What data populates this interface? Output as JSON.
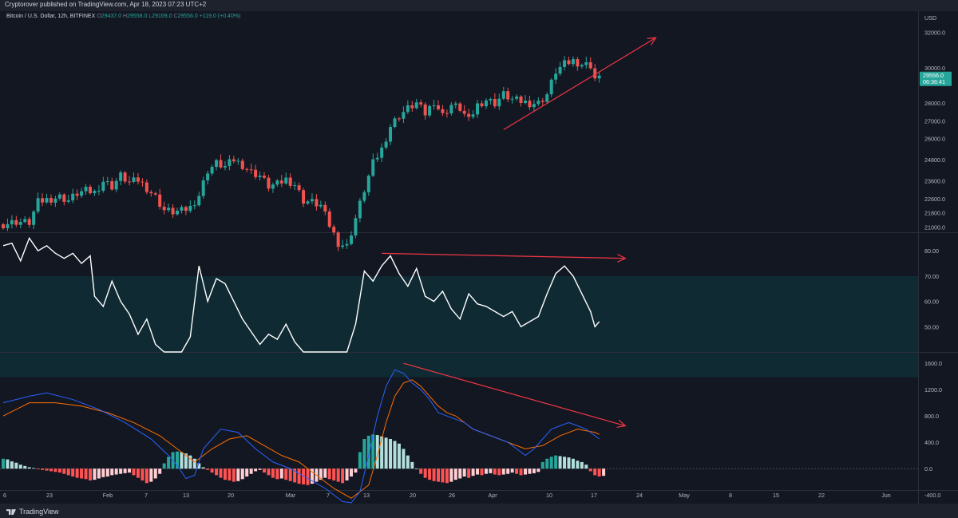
{
  "header": {
    "published": "Cryptorover published on TradingView.com, Apr 18, 2023 07:23 UTC+2",
    "symbol": "Bitcoin / U.S. Dollar, 12h, BITFINEX",
    "o_label": "O",
    "o_value": "29437.0",
    "h_label": "H",
    "h_value": "29558.0",
    "l_label": "L",
    "l_value": "29169.0",
    "c_label": "C",
    "c_value": "29556.0",
    "change": "+119.0 (+0.40%)"
  },
  "footer": {
    "brand": "TradingView"
  },
  "colors": {
    "background": "#131722",
    "up": "#26a69a",
    "down": "#ef5350",
    "annotation": "#f23645",
    "rsi_band": "#0f2a33",
    "macd_line": "#2962ff",
    "signal_line": "#ff6d00"
  },
  "chart_data": {
    "type": "candlestick",
    "currency_label": "USD",
    "x_ticks": [
      "6",
      "23",
      "Feb",
      "7",
      "13",
      "20",
      "Mar",
      "7",
      "13",
      "20",
      "26",
      "Apr",
      "10",
      "17",
      "24",
      "May",
      "8",
      "15",
      "22",
      "Jun"
    ],
    "price": {
      "y_ticks": [
        21000,
        21800,
        22600,
        23600,
        24800,
        26000,
        27000,
        28000,
        30000,
        32000
      ],
      "y_tick_labels": [
        "21000.0",
        "21800.0",
        "22600.0",
        "23600.0",
        "24800.0",
        "26000.0",
        "27000.0",
        "28000.0",
        "30000.0",
        "32000.0"
      ],
      "last_price_label": "29556.0",
      "countdown_label": "06:36:41",
      "close_points": [
        [
          0,
          21150
        ],
        [
          3,
          21300
        ],
        [
          6,
          21250
        ],
        [
          8,
          22400
        ],
        [
          10,
          22550
        ],
        [
          13,
          22700
        ],
        [
          15,
          22500
        ],
        [
          17,
          22900
        ],
        [
          19,
          23050
        ],
        [
          21,
          22950
        ],
        [
          23,
          23600
        ],
        [
          25,
          23300
        ],
        [
          27,
          23900
        ],
        [
          29,
          23500
        ],
        [
          31,
          23650
        ],
        [
          33,
          23200
        ],
        [
          35,
          22700
        ],
        [
          37,
          21950
        ],
        [
          39,
          21850
        ],
        [
          41,
          21900
        ],
        [
          43,
          22100
        ],
        [
          45,
          22800
        ],
        [
          47,
          24200
        ],
        [
          49,
          24600
        ],
        [
          51,
          24400
        ],
        [
          53,
          24800
        ],
        [
          55,
          24500
        ],
        [
          57,
          24100
        ],
        [
          59,
          23900
        ],
        [
          61,
          23300
        ],
        [
          63,
          23400
        ],
        [
          65,
          23700
        ],
        [
          67,
          23400
        ],
        [
          69,
          22500
        ],
        [
          71,
          22400
        ],
        [
          73,
          22200
        ],
        [
          75,
          21100
        ],
        [
          77,
          20100
        ],
        [
          79,
          19900
        ],
        [
          81,
          21500
        ],
        [
          83,
          23100
        ],
        [
          85,
          24600
        ],
        [
          87,
          25400
        ],
        [
          89,
          26700
        ],
        [
          91,
          27300
        ],
        [
          93,
          27700
        ],
        [
          95,
          28000
        ],
        [
          97,
          27400
        ],
        [
          99,
          28100
        ],
        [
          101,
          27300
        ],
        [
          103,
          27900
        ],
        [
          105,
          27700
        ],
        [
          107,
          27000
        ],
        [
          109,
          27900
        ],
        [
          111,
          28200
        ],
        [
          113,
          28000
        ],
        [
          115,
          28500
        ],
        [
          117,
          28200
        ],
        [
          119,
          28100
        ],
        [
          121,
          28000
        ],
        [
          123,
          28000
        ],
        [
          125,
          28500
        ],
        [
          127,
          29800
        ],
        [
          129,
          30200
        ],
        [
          131,
          30400
        ],
        [
          133,
          30200
        ],
        [
          135,
          30150
        ],
        [
          136,
          29400
        ],
        [
          137,
          29556
        ]
      ],
      "trendline": {
        "from": [
          115,
          26500
        ],
        "to": [
          150,
          31700
        ]
      }
    },
    "rsi": {
      "y_ticks": [
        50,
        60,
        70,
        80
      ],
      "y_tick_labels": [
        "50.00",
        "60.00",
        "70.00",
        "80.00"
      ],
      "band": [
        30,
        70
      ],
      "points": [
        [
          0,
          82
        ],
        [
          2,
          83
        ],
        [
          4,
          76
        ],
        [
          6,
          85
        ],
        [
          8,
          80
        ],
        [
          10,
          82
        ],
        [
          12,
          79
        ],
        [
          14,
          77
        ],
        [
          16,
          79
        ],
        [
          18,
          75
        ],
        [
          20,
          78
        ],
        [
          21,
          62
        ],
        [
          23,
          58
        ],
        [
          25,
          68
        ],
        [
          27,
          60
        ],
        [
          29,
          55
        ],
        [
          31,
          47
        ],
        [
          33,
          53
        ],
        [
          35,
          43
        ],
        [
          37,
          36
        ],
        [
          39,
          32
        ],
        [
          41,
          35
        ],
        [
          43,
          46
        ],
        [
          45,
          74
        ],
        [
          47,
          60
        ],
        [
          49,
          69
        ],
        [
          51,
          67
        ],
        [
          53,
          60
        ],
        [
          55,
          53
        ],
        [
          57,
          48
        ],
        [
          59,
          43
        ],
        [
          61,
          47
        ],
        [
          63,
          45
        ],
        [
          65,
          51
        ],
        [
          67,
          44
        ],
        [
          69,
          36
        ],
        [
          71,
          34
        ],
        [
          73,
          30
        ],
        [
          75,
          30
        ],
        [
          77,
          32
        ],
        [
          79,
          30
        ],
        [
          81,
          51
        ],
        [
          83,
          72
        ],
        [
          85,
          68
        ],
        [
          87,
          74
        ],
        [
          89,
          78
        ],
        [
          91,
          71
        ],
        [
          93,
          66
        ],
        [
          95,
          73
        ],
        [
          97,
          62
        ],
        [
          99,
          60
        ],
        [
          101,
          64
        ],
        [
          103,
          57
        ],
        [
          105,
          53
        ],
        [
          107,
          63
        ],
        [
          109,
          59
        ],
        [
          111,
          58
        ],
        [
          113,
          56
        ],
        [
          115,
          54
        ],
        [
          117,
          56
        ],
        [
          119,
          50
        ],
        [
          121,
          52
        ],
        [
          123,
          54
        ],
        [
          125,
          63
        ],
        [
          127,
          71
        ],
        [
          129,
          74
        ],
        [
          131,
          70
        ],
        [
          133,
          63
        ],
        [
          135,
          56
        ],
        [
          136,
          50
        ],
        [
          137,
          52
        ]
      ],
      "trendline": {
        "from": [
          87,
          79
        ],
        "to": [
          143,
          77
        ]
      }
    },
    "macd": {
      "y_ticks": [
        -400,
        0,
        400,
        800,
        1200,
        1600
      ],
      "y_tick_labels": [
        "-400.0",
        "0.0",
        "400.0",
        "800.0",
        "1200.0",
        "1600.0"
      ],
      "macd_points": [
        [
          0,
          1000
        ],
        [
          6,
          1100
        ],
        [
          10,
          1150
        ],
        [
          16,
          1050
        ],
        [
          22,
          900
        ],
        [
          28,
          700
        ],
        [
          34,
          450
        ],
        [
          38,
          200
        ],
        [
          40,
          50
        ],
        [
          42,
          -150
        ],
        [
          44,
          -100
        ],
        [
          46,
          300
        ],
        [
          50,
          600
        ],
        [
          54,
          550
        ],
        [
          58,
          300
        ],
        [
          62,
          100
        ],
        [
          66,
          0
        ],
        [
          70,
          -150
        ],
        [
          74,
          -300
        ],
        [
          78,
          -500
        ],
        [
          80,
          -600
        ],
        [
          82,
          -350
        ],
        [
          84,
          200
        ],
        [
          86,
          800
        ],
        [
          88,
          1250
        ],
        [
          90,
          1500
        ],
        [
          92,
          1450
        ],
        [
          94,
          1300
        ],
        [
          96,
          1200
        ],
        [
          98,
          1050
        ],
        [
          100,
          850
        ],
        [
          102,
          800
        ],
        [
          104,
          750
        ],
        [
          106,
          700
        ],
        [
          108,
          600
        ],
        [
          110,
          550
        ],
        [
          112,
          500
        ],
        [
          114,
          450
        ],
        [
          116,
          400
        ],
        [
          118,
          300
        ],
        [
          120,
          200
        ],
        [
          122,
          300
        ],
        [
          124,
          450
        ],
        [
          126,
          600
        ],
        [
          128,
          650
        ],
        [
          130,
          700
        ],
        [
          132,
          650
        ],
        [
          134,
          600
        ],
        [
          136,
          500
        ],
        [
          137,
          450
        ]
      ],
      "signal_points": [
        [
          0,
          800
        ],
        [
          6,
          1000
        ],
        [
          12,
          1000
        ],
        [
          18,
          950
        ],
        [
          24,
          850
        ],
        [
          30,
          700
        ],
        [
          36,
          500
        ],
        [
          40,
          300
        ],
        [
          44,
          100
        ],
        [
          48,
          300
        ],
        [
          52,
          450
        ],
        [
          56,
          500
        ],
        [
          60,
          350
        ],
        [
          64,
          200
        ],
        [
          68,
          100
        ],
        [
          72,
          -100
        ],
        [
          76,
          -300
        ],
        [
          80,
          -450
        ],
        [
          84,
          -250
        ],
        [
          86,
          200
        ],
        [
          88,
          700
        ],
        [
          90,
          1100
        ],
        [
          92,
          1300
        ],
        [
          94,
          1350
        ],
        [
          96,
          1250
        ],
        [
          98,
          1100
        ],
        [
          100,
          950
        ],
        [
          102,
          850
        ],
        [
          104,
          800
        ],
        [
          106,
          700
        ],
        [
          108,
          600
        ],
        [
          110,
          550
        ],
        [
          112,
          500
        ],
        [
          114,
          450
        ],
        [
          116,
          400
        ],
        [
          118,
          350
        ],
        [
          120,
          300
        ],
        [
          124,
          350
        ],
        [
          128,
          500
        ],
        [
          132,
          600
        ],
        [
          136,
          550
        ],
        [
          137,
          520
        ]
      ],
      "histogram": [
        150,
        140,
        110,
        90,
        60,
        40,
        20,
        10,
        -10,
        -20,
        -30,
        -40,
        -50,
        -60,
        -80,
        -100,
        -120,
        -140,
        -150,
        -160,
        -180,
        -170,
        -150,
        -130,
        -120,
        -100,
        -90,
        -80,
        -70,
        -60,
        -100,
        -140,
        -180,
        -220,
        -200,
        -150,
        -80,
        80,
        180,
        250,
        260,
        250,
        230,
        200,
        150,
        80,
        20,
        -20,
        -60,
        -100,
        -140,
        -170,
        -180,
        -200,
        -190,
        -160,
        -120,
        -80,
        -40,
        -20,
        -60,
        -100,
        -140,
        -160,
        -150,
        -170,
        -190,
        -210,
        -230,
        -240,
        -250,
        -230,
        -200,
        -170,
        -140,
        -160,
        -180,
        -200,
        -220,
        -180,
        -120,
        -60,
        250,
        450,
        500,
        520,
        510,
        490,
        470,
        450,
        420,
        380,
        300,
        200,
        100,
        0,
        -80,
        -140,
        -170,
        -190,
        -200,
        -210,
        -220,
        -200,
        -170,
        -150,
        -120,
        -140,
        -110,
        -90,
        -100,
        -80,
        -70,
        -90,
        -100,
        -90,
        -80,
        -60,
        -80,
        -100,
        -90,
        -80,
        -70,
        -50,
        100,
        150,
        180,
        200,
        190,
        180,
        170,
        150,
        120,
        100,
        60,
        -40,
        -100,
        -120,
        -110
      ],
      "trendline": {
        "from": [
          92,
          1600
        ],
        "to": [
          143,
          650
        ]
      }
    }
  }
}
